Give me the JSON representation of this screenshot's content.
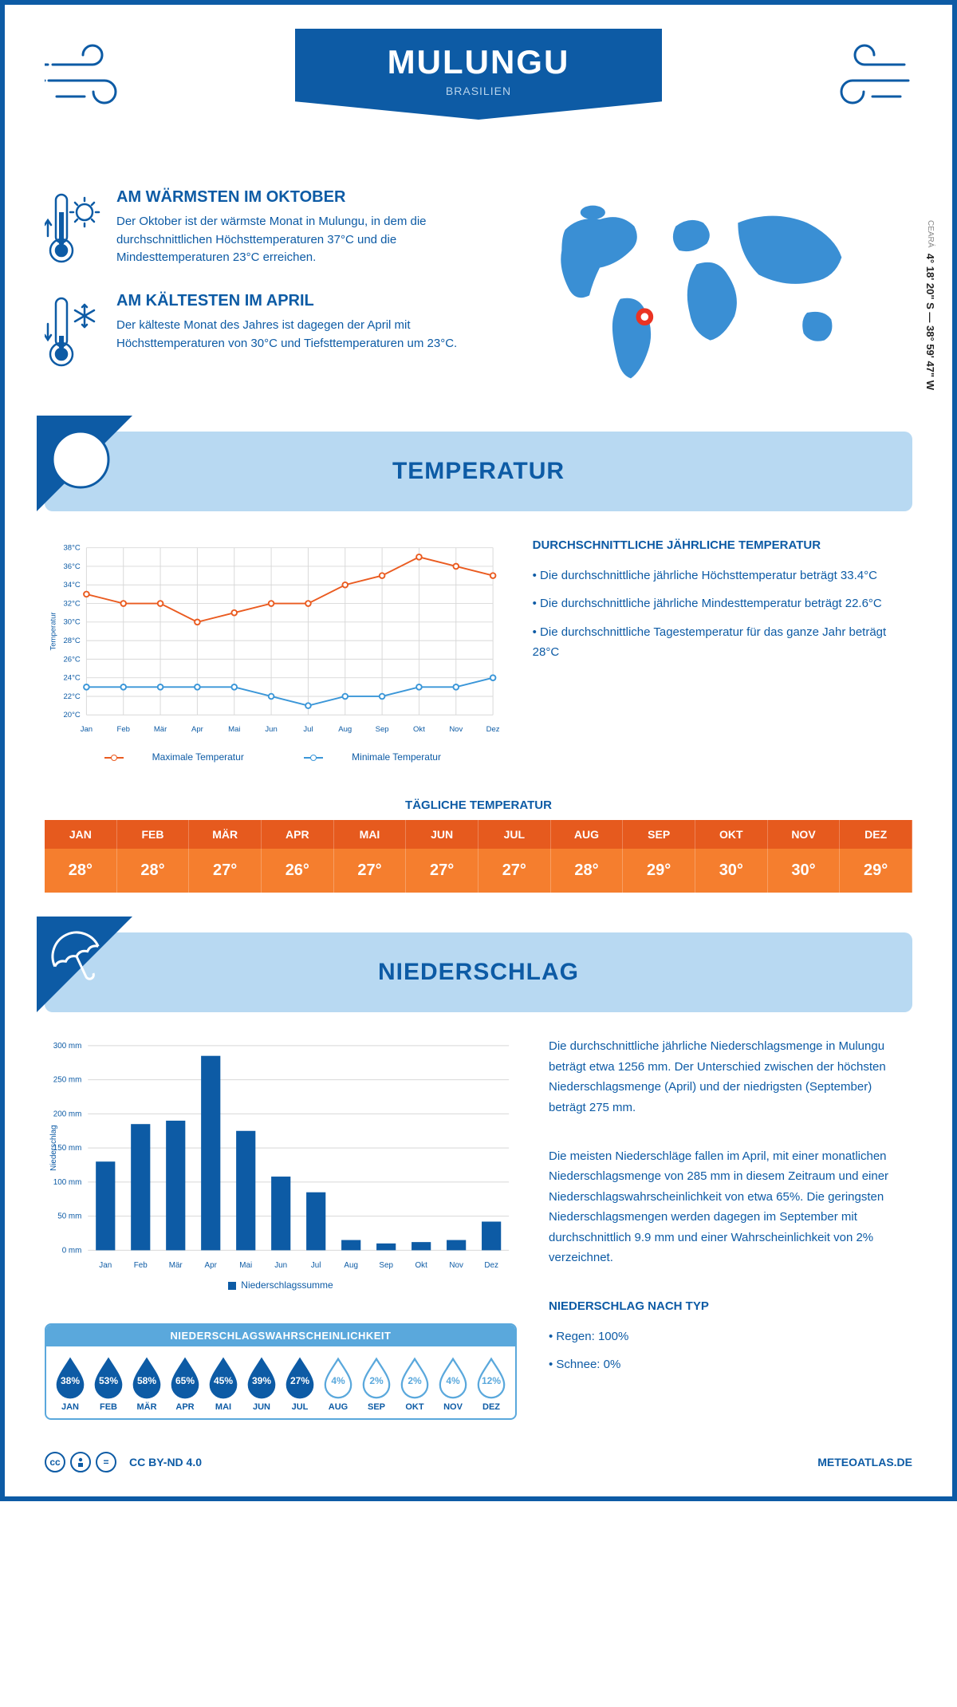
{
  "colors": {
    "primary": "#0d5ba5",
    "lightBlue": "#b8d9f2",
    "midBlue": "#5aa8dc",
    "orangeDark": "#e65a1e",
    "orangeLight": "#f57e2e",
    "maxLine": "#ea5b20",
    "minLine": "#3a96d8",
    "grid": "#d8d8d8",
    "marker": "#ea3323"
  },
  "header": {
    "title": "MULUNGU",
    "subtitle": "BRASILIEN",
    "coords": "4° 18' 20\" S — 38° 59' 47\" W",
    "region": "CEARÁ"
  },
  "facts": {
    "warm": {
      "title": "AM WÄRMSTEN IM OKTOBER",
      "text": "Der Oktober ist der wärmste Monat in Mulungu, in dem die durchschnittlichen Höchsttemperaturen 37°C und die Mindesttemperaturen 23°C erreichen."
    },
    "cold": {
      "title": "AM KÄLTESTEN IM APRIL",
      "text": "Der kälteste Monat des Jahres ist dagegen der April mit Höchsttemperaturen von 30°C und Tiefsttemperaturen um 23°C."
    }
  },
  "sections": {
    "temperature": "TEMPERATUR",
    "precipitation": "NIEDERSCHLAG"
  },
  "tempChart": {
    "months": [
      "Jan",
      "Feb",
      "Mär",
      "Apr",
      "Mai",
      "Jun",
      "Jul",
      "Aug",
      "Sep",
      "Okt",
      "Nov",
      "Dez"
    ],
    "yLabel": "Temperatur",
    "yMin": 20,
    "yMax": 38,
    "yStep": 2,
    "yUnit": "°C",
    "maxSeries": [
      33,
      32,
      32,
      30,
      31,
      32,
      32,
      34,
      35,
      37,
      36,
      35
    ],
    "minSeries": [
      23,
      23,
      23,
      23,
      23,
      22,
      21,
      22,
      22,
      23,
      23,
      24
    ],
    "legend": {
      "max": "Maximale Temperatur",
      "min": "Minimale Temperatur"
    }
  },
  "tempText": {
    "title": "DURCHSCHNITTLICHE JÄHRLICHE TEMPERATUR",
    "b1": "• Die durchschnittliche jährliche Höchsttemperatur beträgt 33.4°C",
    "b2": "• Die durchschnittliche jährliche Mindesttemperatur beträgt 22.6°C",
    "b3": "• Die durchschnittliche Tagestemperatur für das ganze Jahr beträgt 28°C"
  },
  "dailyTemp": {
    "title": "TÄGLICHE TEMPERATUR",
    "months": [
      "JAN",
      "FEB",
      "MÄR",
      "APR",
      "MAI",
      "JUN",
      "JUL",
      "AUG",
      "SEP",
      "OKT",
      "NOV",
      "DEZ"
    ],
    "values": [
      "28°",
      "28°",
      "27°",
      "26°",
      "27°",
      "27°",
      "27°",
      "28°",
      "29°",
      "30°",
      "30°",
      "29°"
    ]
  },
  "precipChart": {
    "months": [
      "Jan",
      "Feb",
      "Mär",
      "Apr",
      "Mai",
      "Jun",
      "Jul",
      "Aug",
      "Sep",
      "Okt",
      "Nov",
      "Dez"
    ],
    "yLabel": "Niederschlag",
    "yMin": 0,
    "yMax": 300,
    "yStep": 50,
    "yUnit": " mm",
    "values": [
      130,
      185,
      190,
      285,
      175,
      108,
      85,
      15,
      10,
      12,
      15,
      42
    ],
    "legend": "Niederschlagssumme"
  },
  "precipText": {
    "p1": "Die durchschnittliche jährliche Niederschlagsmenge in Mulungu beträgt etwa 1256 mm. Der Unterschied zwischen der höchsten Niederschlagsmenge (April) und der niedrigsten (September) beträgt 275 mm.",
    "p2": "Die meisten Niederschläge fallen im April, mit einer monatlichen Niederschlagsmenge von 285 mm in diesem Zeitraum und einer Niederschlagswahrscheinlichkeit von etwa 65%. Die geringsten Niederschlagsmengen werden dagegen im September mit durchschnittlich 9.9 mm und einer Wahrscheinlichkeit von 2% verzeichnet.",
    "typeTitle": "NIEDERSCHLAG NACH TYP",
    "t1": "• Regen: 100%",
    "t2": "• Schnee: 0%"
  },
  "probability": {
    "title": "NIEDERSCHLAGSWAHRSCHEINLICHKEIT",
    "months": [
      "JAN",
      "FEB",
      "MÄR",
      "APR",
      "MAI",
      "JUN",
      "JUL",
      "AUG",
      "SEP",
      "OKT",
      "NOV",
      "DEZ"
    ],
    "values": [
      38,
      53,
      58,
      65,
      45,
      39,
      27,
      4,
      2,
      2,
      4,
      12
    ],
    "threshold": 15
  },
  "footer": {
    "license": "CC BY-ND 4.0",
    "site": "METEOATLAS.DE"
  },
  "map": {
    "marker_lon_pct": 33,
    "marker_lat_pct": 62
  }
}
